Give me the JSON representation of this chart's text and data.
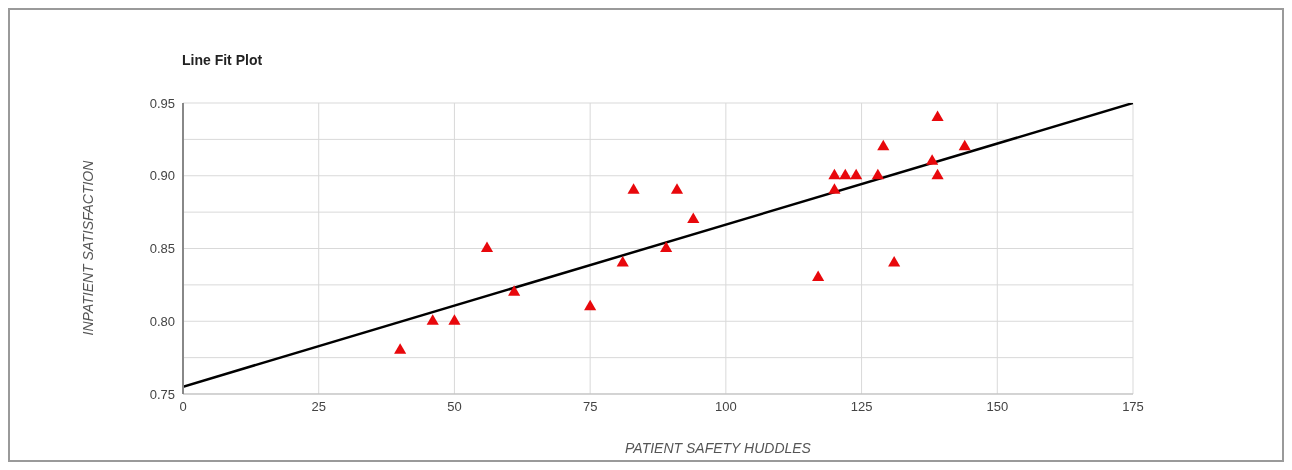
{
  "chart_data": {
    "type": "scatter",
    "title": "Line Fit Plot",
    "xlabel": "PATIENT SAFETY HUDDLES",
    "ylabel": "INPATIENT SATISFACTION",
    "xlim": [
      0,
      175
    ],
    "xticks": [
      0,
      25,
      50,
      75,
      100,
      125,
      150,
      175
    ],
    "ylim": [
      0.75,
      0.95
    ],
    "yticks": [
      0.75,
      {
        "value": 0.775,
        "label": null
      },
      {
        "value": 0.8,
        "label": "0.80"
      },
      {
        "value": 0.825,
        "label": null
      },
      0.85,
      {
        "value": 0.875,
        "label": null
      },
      {
        "value": 0.9,
        "label": "0.90"
      },
      {
        "value": 0.925,
        "label": null
      },
      0.95
    ],
    "grid": true,
    "series": [
      {
        "marker": "triangle",
        "color": "#e8080c",
        "x": [
          40,
          46,
          50,
          56,
          61,
          75,
          81,
          83,
          89,
          91,
          94,
          117,
          120,
          120,
          122,
          124,
          128,
          129,
          131,
          138,
          139,
          139,
          144
        ],
        "values": [
          0.78,
          0.8,
          0.8,
          0.85,
          0.82,
          0.81,
          0.84,
          0.89,
          0.85,
          0.89,
          0.87,
          0.83,
          0.9,
          0.89,
          0.9,
          0.9,
          0.9,
          0.92,
          0.84,
          0.91,
          0.94,
          0.9,
          0.92
        ]
      },
      {
        "type": "line",
        "color": "#000000",
        "x": [
          0,
          175
        ],
        "values": [
          0.755,
          0.95
        ]
      }
    ]
  }
}
